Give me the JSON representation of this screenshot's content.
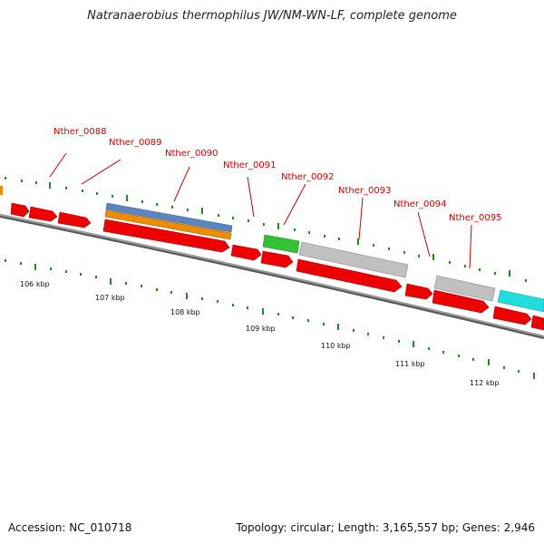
{
  "title": "Natranaerobius thermophilus JW/NM-WN-LF, complete genome",
  "footer": {
    "accession": "Accession: NC_010718",
    "summary": "Topology: circular; Length: 3,165,557 bp; Genes: 2,946"
  },
  "colors": {
    "cds": "#ee0000",
    "backbone": "#808080",
    "tick": "#228b22",
    "label": "#cc0000",
    "blue_feature": "#5b86c0",
    "orange_feature": "#f08c00",
    "green_feature": "#33c233",
    "grey_feature": "#c0c0c0",
    "cyan_feature": "#22dddd"
  },
  "gene_labels": [
    "Nther_0088",
    "Nther_0089",
    "Nther_0090",
    "Nther_0091",
    "Nther_0092",
    "Nther_0093",
    "Nther_0094",
    "Nther_0095"
  ],
  "kbp_labels": [
    "106 kbp",
    "107 kbp",
    "108 kbp",
    "109 kbp",
    "110 kbp",
    "111 kbp",
    "112 kbp"
  ]
}
